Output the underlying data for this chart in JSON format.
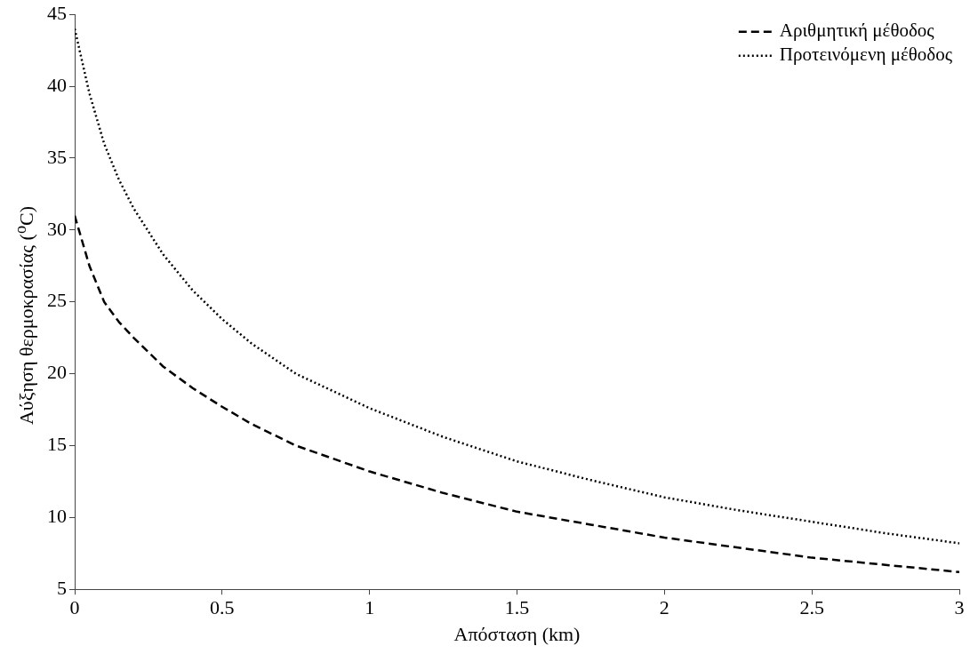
{
  "chart_data": {
    "type": "line",
    "xlabel": "Απόσταση (km)",
    "ylabel": "Αύξηση θερμοκρασίας ($^{o}$C)",
    "x": [
      0,
      0.05,
      0.1,
      0.15,
      0.2,
      0.3,
      0.4,
      0.5,
      0.6,
      0.75,
      1,
      1.25,
      1.5,
      1.75,
      2,
      2.25,
      2.5,
      2.75,
      3
    ],
    "series": [
      {
        "name": "Αριθμητική μέθοδος",
        "color": "#000000",
        "line_style": "dashed",
        "values": [
          31,
          27.5,
          25,
          23.6,
          22.5,
          20.5,
          19,
          17.7,
          16.5,
          15,
          13.2,
          11.7,
          10.4,
          9.5,
          8.6,
          7.9,
          7.2,
          6.7,
          6.2
        ]
      },
      {
        "name": "Προτεινόμενη μέθοδος",
        "color": "#000000",
        "line_style": "dotted",
        "values": [
          44,
          39.5,
          36,
          33.5,
          31.5,
          28.3,
          25.8,
          23.8,
          22.1,
          20,
          17.6,
          15.6,
          13.9,
          12.6,
          11.4,
          10.5,
          9.7,
          8.9,
          8.2
        ]
      }
    ],
    "xlim": [
      0,
      3
    ],
    "xticks": [
      0,
      0.5,
      1,
      1.5,
      2,
      2.5,
      3
    ],
    "ylim": [
      5,
      45
    ],
    "yticks": [
      5,
      10,
      15,
      20,
      25,
      30,
      35,
      40,
      45
    ],
    "grid": false,
    "legend": "top right",
    "marker": "none"
  }
}
